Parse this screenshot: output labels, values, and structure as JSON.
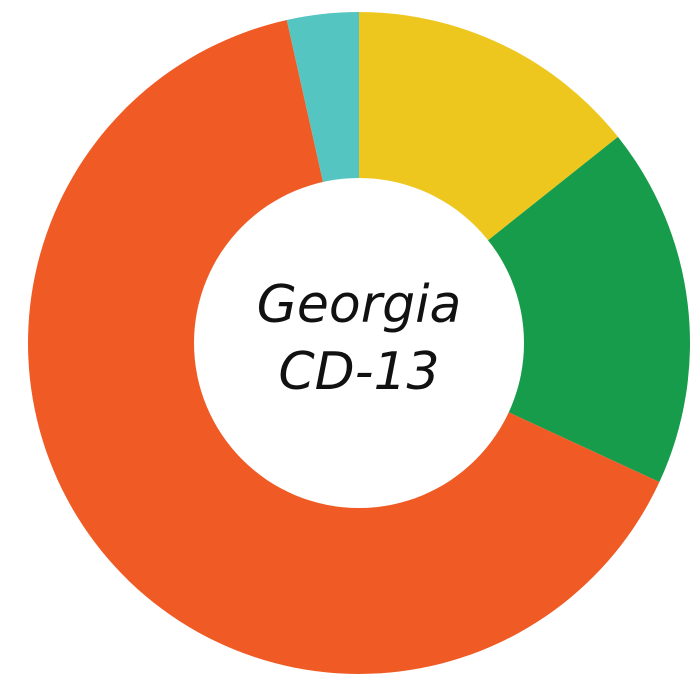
{
  "chart_data": {
    "type": "pie",
    "title": "",
    "center_label": [
      "Georgia",
      "CD-13"
    ],
    "slices": [
      {
        "value": 14.3,
        "color": "#eec71e"
      },
      {
        "value": 17.6,
        "color": "#179c4b"
      },
      {
        "value": 64.6,
        "color": "#f05a24"
      },
      {
        "value": 3.5,
        "color": "#55c5c2"
      }
    ]
  }
}
